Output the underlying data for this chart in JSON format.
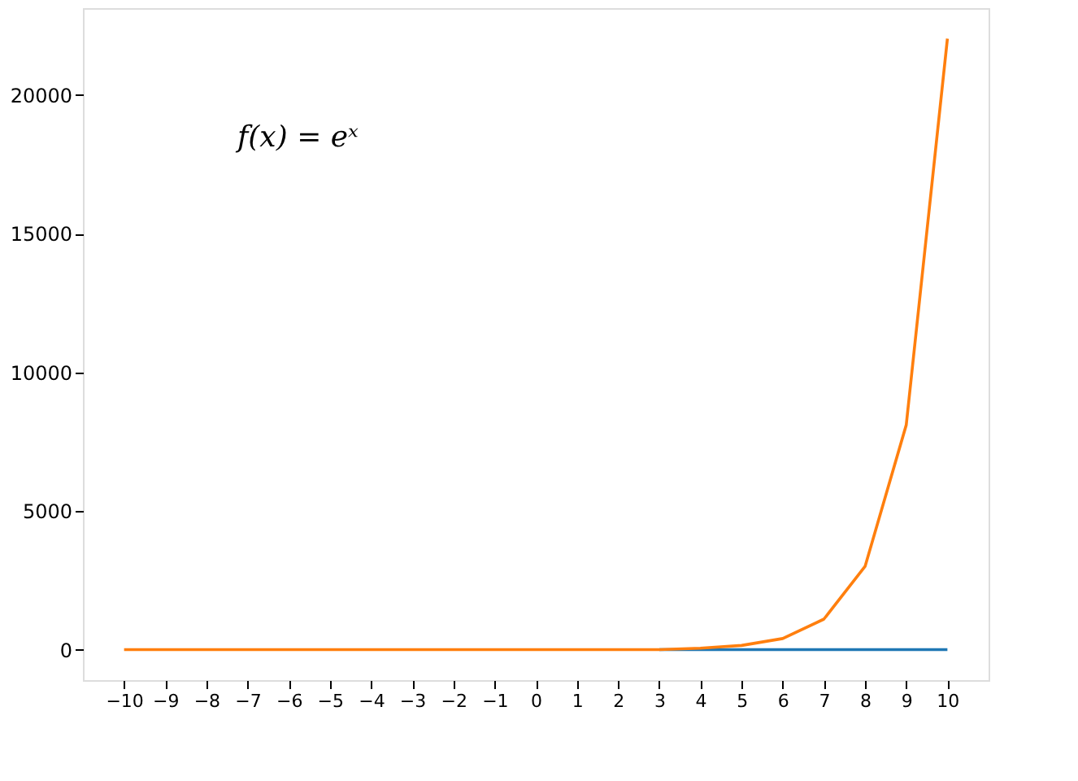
{
  "chart_data": {
    "type": "line",
    "x": [
      -10,
      -9,
      -8,
      -7,
      -6,
      -5,
      -4,
      -3,
      -2,
      -1,
      0,
      1,
      2,
      3,
      4,
      5,
      6,
      7,
      8,
      9,
      10
    ],
    "series": [
      {
        "color": "#1f77b4",
        "values": [
          null,
          null,
          null,
          null,
          null,
          null,
          null,
          null,
          null,
          null,
          null,
          null,
          null,
          0,
          0,
          0,
          0,
          0,
          0,
          0,
          0
        ]
      },
      {
        "color": "#ff7f0e",
        "values": [
          0,
          0,
          0,
          0,
          0,
          0,
          0,
          0,
          0,
          0,
          0,
          0,
          0,
          0,
          50,
          150,
          400,
          1100,
          3000,
          8100,
          22030
        ]
      }
    ],
    "annotations": [
      "f(x) = eˣ"
    ],
    "xlim": [
      -11,
      11
    ],
    "xticks": [
      -10,
      -9,
      -8,
      -7,
      -6,
      -5,
      -4,
      -3,
      -2,
      -1,
      0,
      1,
      2,
      3,
      4,
      5,
      6,
      7,
      8,
      9,
      10
    ],
    "ylim": [
      -1100,
      23130
    ],
    "yticks": [
      0,
      5000,
      10000,
      15000,
      20000
    ],
    "grid": false,
    "marker": "none",
    "line_style": "solid"
  }
}
